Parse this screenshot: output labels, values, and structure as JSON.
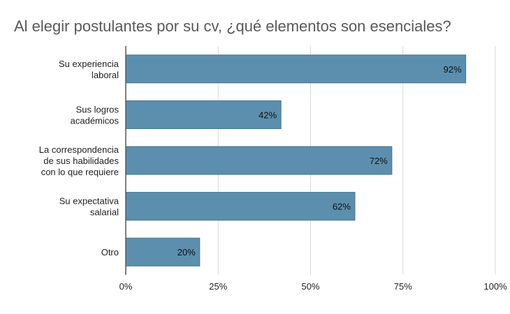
{
  "chart_data": {
    "type": "bar",
    "orientation": "horizontal",
    "title": "Al elegir postulantes por su cv, ¿qué elementos son esenciales?",
    "categories": [
      [
        "Su experiencia",
        "laboral"
      ],
      [
        "Sus logros",
        "académicos"
      ],
      [
        "La correspondencia",
        "de sus habilidades",
        "con lo que requiere"
      ],
      [
        "Su expectativa",
        "salarial"
      ],
      [
        "Otro"
      ]
    ],
    "values": [
      92,
      42,
      72,
      62,
      20
    ],
    "value_labels": [
      "92%",
      "42%",
      "72%",
      "62%",
      "20%"
    ],
    "xlim": [
      0,
      100
    ],
    "xticks": [
      "0%",
      "25%",
      "50%",
      "75%",
      "100%"
    ],
    "grid": true,
    "legend": "none",
    "bar_color": "#5b8fad",
    "bar_border": "#46758f"
  }
}
